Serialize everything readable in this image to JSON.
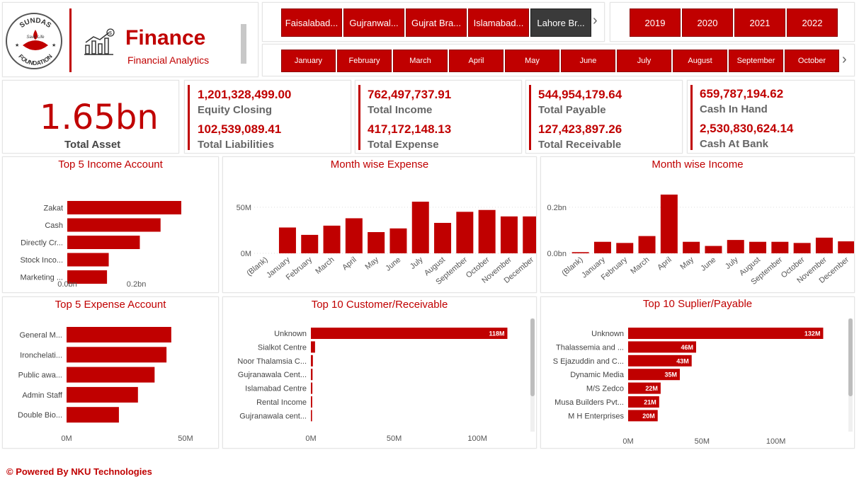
{
  "header": {
    "logo_text_top": "SUNDAS",
    "logo_text_bottom": "FOUNDATION",
    "logo_tagline": "Save Life",
    "title": "Finance",
    "subtitle": "Financial Analytics",
    "icon": "finance-chart-icon"
  },
  "city_slicer": {
    "items": [
      "Faisalabad...",
      "Gujranwal...",
      "Gujrat Bra...",
      "Islamabad...",
      "Lahore Br..."
    ],
    "selected_index": 4
  },
  "year_slicer": {
    "items": [
      "2019",
      "2020",
      "2021",
      "2022"
    ]
  },
  "month_slicer": {
    "items": [
      "January",
      "February",
      "March",
      "April",
      "May",
      "June",
      "July",
      "August",
      "September",
      "October"
    ]
  },
  "kpis": {
    "total_asset": {
      "value": "1.65bn",
      "label": "Total Asset"
    },
    "equity_closing": {
      "value": "1,201,328,499.00",
      "label": "Equity Closing"
    },
    "total_liabilities": {
      "value": "102,539,089.41",
      "label": "Total Liabilities"
    },
    "total_income": {
      "value": "762,497,737.91",
      "label": "Total Income"
    },
    "total_expense": {
      "value": "417,172,148.13",
      "label": "Total Expense"
    },
    "total_payable": {
      "value": "544,954,179.64",
      "label": "Total Payable"
    },
    "total_receivable": {
      "value": "127,423,897.26",
      "label": "Total Receivable"
    },
    "cash_in_hand": {
      "value": "659,787,194.62",
      "label": "Cash In Hand"
    },
    "cash_at_bank": {
      "value": "2,530,830,624.14",
      "label": "Cash At Bank"
    }
  },
  "chart_data": [
    {
      "id": "top5_income",
      "type": "bar",
      "orientation": "horizontal",
      "title": "Top 5 Income Account",
      "categories": [
        "Zakat",
        "Cash",
        "Directly Cr...",
        "Stock Inco...",
        "Marketing ..."
      ],
      "values": [
        0.33,
        0.27,
        0.21,
        0.12,
        0.115
      ],
      "unit": "bn",
      "xlim": [
        0,
        0.33
      ],
      "ticks": [
        {
          "v": 0,
          "label": "0.0bn"
        },
        {
          "v": 0.2,
          "label": "0.2bn"
        }
      ]
    },
    {
      "id": "month_expense",
      "type": "bar",
      "title": "Month wise Expense",
      "categories": [
        "(Blank)",
        "January",
        "February",
        "March",
        "April",
        "May",
        "June",
        "July",
        "August",
        "September",
        "October",
        "November",
        "December"
      ],
      "values": [
        0,
        28,
        20,
        30,
        38,
        23,
        27,
        56,
        33,
        45,
        47,
        40,
        40
      ],
      "unit": "M",
      "ylim": [
        0,
        56
      ],
      "ticks": [
        {
          "v": 0,
          "label": "0M"
        },
        {
          "v": 50,
          "label": "50M"
        }
      ]
    },
    {
      "id": "month_income",
      "type": "bar",
      "title": "Month wise Income",
      "categories": [
        "(Blank)",
        "January",
        "February",
        "March",
        "April",
        "May",
        "June",
        "July",
        "August",
        "September",
        "October",
        "November",
        "December"
      ],
      "values": [
        0.005,
        0.05,
        0.045,
        0.075,
        0.255,
        0.05,
        0.032,
        0.058,
        0.05,
        0.05,
        0.045,
        0.068,
        0.052
      ],
      "unit": "bn",
      "ylim": [
        0,
        0.255
      ],
      "ticks": [
        {
          "v": 0,
          "label": "0.0bn"
        },
        {
          "v": 0.2,
          "label": "0.2bn"
        }
      ]
    },
    {
      "id": "top5_expense",
      "type": "bar",
      "orientation": "horizontal",
      "title": "Top 5 Expense Account",
      "categories": [
        "General M...",
        "Ironchelati...",
        "Public awa...",
        "Admin Staff",
        "Double Bio..."
      ],
      "values": [
        44,
        42,
        37,
        30,
        22
      ],
      "unit": "M",
      "xlim": [
        0,
        50
      ],
      "ticks": [
        {
          "v": 0,
          "label": "0M"
        },
        {
          "v": 50,
          "label": "50M"
        }
      ]
    },
    {
      "id": "top10_receivable",
      "type": "bar",
      "orientation": "horizontal",
      "title": "Top 10 Customer/Receivable",
      "categories": [
        "Unknown",
        "Sialkot Centre",
        "Noor Thalamsia C...",
        "Gujranawala Cent...",
        "Islamabad Centre",
        "Rental Income",
        "Gujranawala cent..."
      ],
      "values": [
        118,
        2.5,
        1.2,
        1.0,
        0.9,
        0.8,
        0.7
      ],
      "data_labels": [
        "118M",
        "",
        "",
        "",
        "",
        "",
        ""
      ],
      "unit": "M",
      "xlim": [
        0,
        128
      ],
      "ticks": [
        {
          "v": 0,
          "label": "0M"
        },
        {
          "v": 50,
          "label": "50M"
        },
        {
          "v": 100,
          "label": "100M"
        }
      ]
    },
    {
      "id": "top10_payable",
      "type": "bar",
      "orientation": "horizontal",
      "title": "Top 10 Suplier/Payable",
      "categories": [
        "Unknown",
        "Thalassemia and ...",
        "S Ejazuddin and C...",
        "Dynamic Media",
        "M/S Zedco",
        "Musa Builders Pvt...",
        "M H Enterprises"
      ],
      "values": [
        132,
        46,
        43,
        35,
        22,
        21,
        20
      ],
      "data_labels": [
        "132M",
        "46M",
        "43M",
        "35M",
        "22M",
        "21M",
        "20M"
      ],
      "unit": "M",
      "xlim": [
        0,
        150
      ],
      "ticks": [
        {
          "v": 0,
          "label": "0M"
        },
        {
          "v": 50,
          "label": "50M"
        },
        {
          "v": 100,
          "label": "100M"
        }
      ]
    }
  ],
  "footer": {
    "text": "© Powered By NKU Technologies"
  },
  "colors": {
    "accent": "#c00000",
    "selected": "#3a3a3a"
  }
}
